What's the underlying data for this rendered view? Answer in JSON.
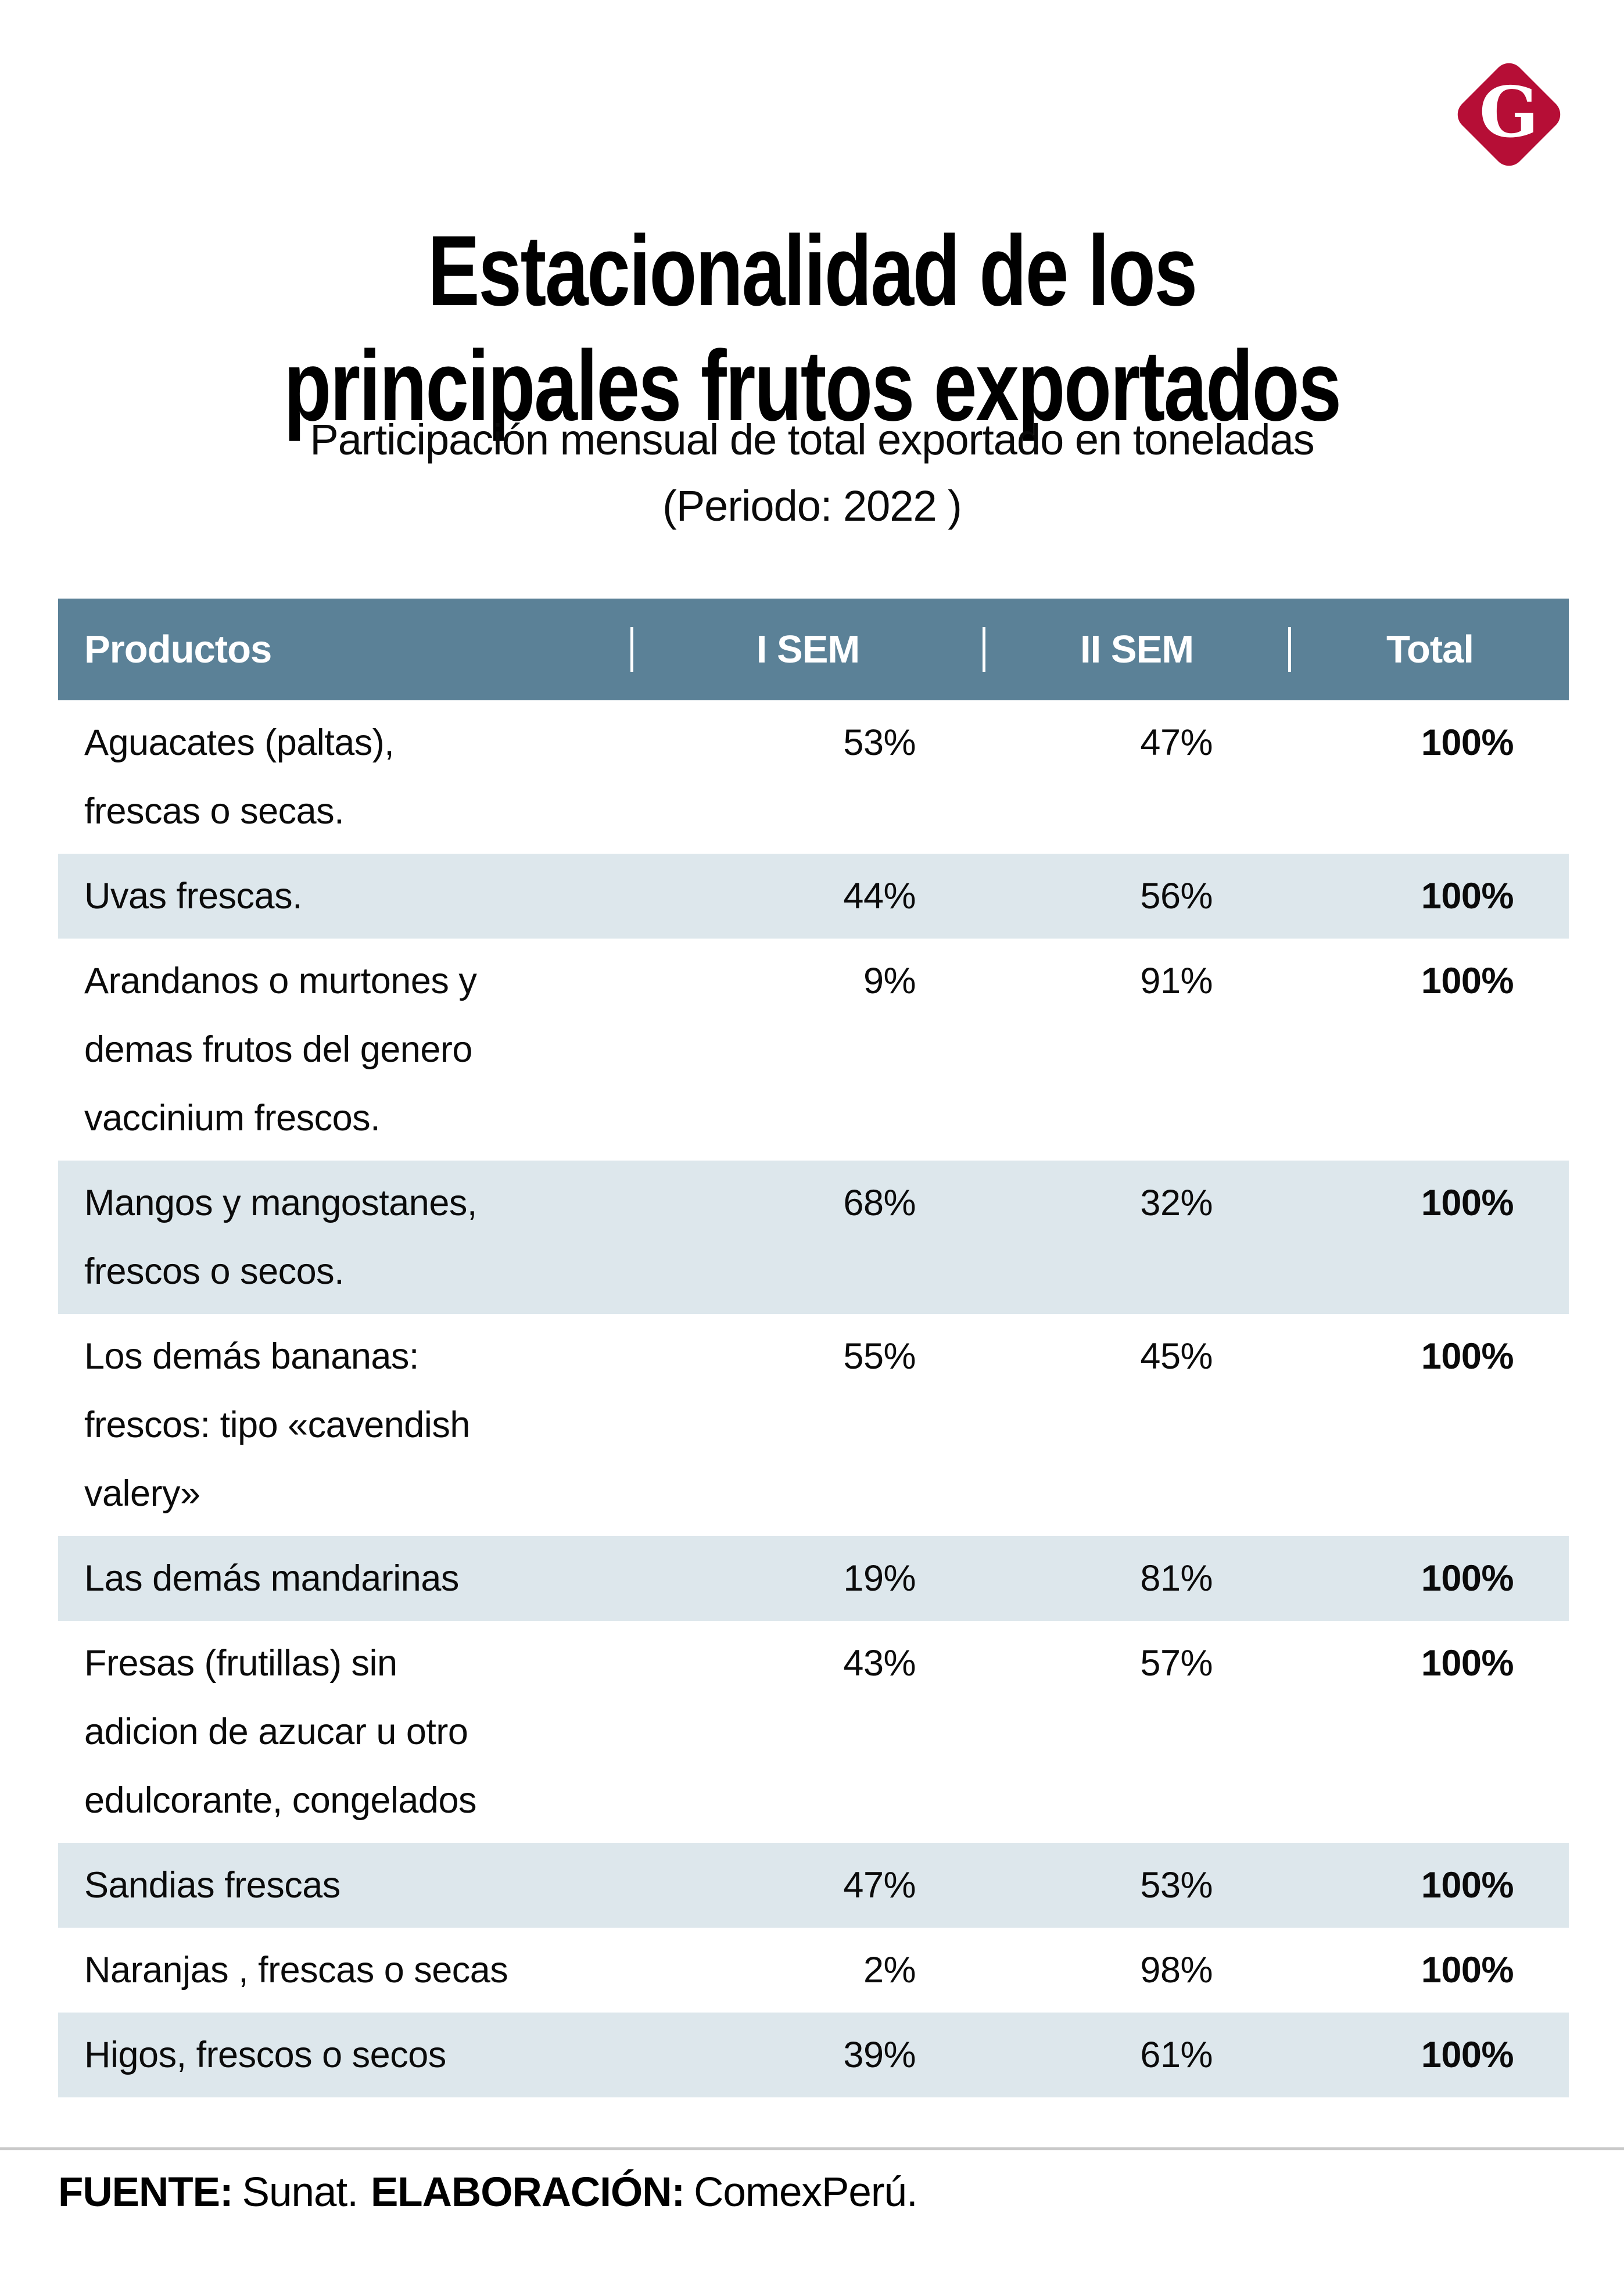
{
  "logo": {
    "letter": "G",
    "color": "#B60E36"
  },
  "title": {
    "line1": "Estacionalidad de los",
    "line2": "principales frutos exportados"
  },
  "subtitle": {
    "line1": "Participación mensual de total exportado en toneladas",
    "line2": "(Periodo: 2022 )"
  },
  "table": {
    "columns": [
      "Productos",
      "I SEM",
      "II SEM",
      "Total"
    ],
    "rows": [
      {
        "product": "Aguacates (paltas),\nfrescas o secas.",
        "i_sem": "53%",
        "ii_sem": "47%",
        "total": "100%",
        "shaded": false
      },
      {
        "product": "Uvas frescas.",
        "i_sem": "44%",
        "ii_sem": "56%",
        "total": "100%",
        "shaded": true
      },
      {
        "product": "Arandanos o murtones y\ndemas frutos del genero\nvaccinium frescos.",
        "i_sem": "9%",
        "ii_sem": "91%",
        "total": "100%",
        "shaded": false
      },
      {
        "product": "Mangos y mangostanes,\nfrescos o secos.",
        "i_sem": "68%",
        "ii_sem": "32%",
        "total": "100%",
        "shaded": true
      },
      {
        "product": "Los demás bananas:\nfrescos: tipo «cavendish\nvalery»",
        "i_sem": "55%",
        "ii_sem": "45%",
        "total": "100%",
        "shaded": false
      },
      {
        "product": "Las demás mandarinas",
        "i_sem": "19%",
        "ii_sem": "81%",
        "total": "100%",
        "shaded": true
      },
      {
        "product": "Fresas (frutillas) sin\nadicion de azucar u otro\nedulcorante, congelados",
        "i_sem": "43%",
        "ii_sem": "57%",
        "total": "100%",
        "shaded": false
      },
      {
        "product": "Sandias frescas",
        "i_sem": "47%",
        "ii_sem": "53%",
        "total": "100%",
        "shaded": true
      },
      {
        "product": "Naranjas , frescas o secas",
        "i_sem": "2%",
        "ii_sem": "98%",
        "total": "100%",
        "shaded": false
      },
      {
        "product": "Higos, frescos o secos",
        "i_sem": "39%",
        "ii_sem": "61%",
        "total": "100%",
        "shaded": true
      }
    ]
  },
  "footer": {
    "source_label": "FUENTE:",
    "source_value": "Sunat.",
    "elaboration_label": "ELABORACIÓN:",
    "elaboration_value": "ComexPerú."
  },
  "colors": {
    "header_bg": "#5B8197",
    "row_shaded_bg": "#DDE7EC",
    "logo_red": "#B60E36",
    "rule_gray": "#C9C9C9",
    "text": "#0b0b0b"
  },
  "chart_data": {
    "type": "table",
    "title": "Estacionalidad de los principales frutos exportados",
    "subtitle": "Participación mensual de total exportado en toneladas (Periodo: 2022 )",
    "columns": [
      "Productos",
      "I SEM",
      "II SEM",
      "Total"
    ],
    "categories": [
      "Aguacates (paltas), frescas o secas.",
      "Uvas frescas.",
      "Arandanos o murtones y demas frutos del genero vaccinium frescos.",
      "Mangos y mangostanes, frescos o secos.",
      "Los demás bananas: frescos: tipo «cavendish valery»",
      "Las demás mandarinas",
      "Fresas (frutillas) sin adicion de azucar u otro edulcorante, congelados",
      "Sandias frescas",
      "Naranjas , frescas o secas",
      "Higos, frescos o secos"
    ],
    "series": [
      {
        "name": "I SEM",
        "unit": "%",
        "values": [
          53,
          44,
          9,
          68,
          55,
          19,
          43,
          47,
          2,
          39
        ]
      },
      {
        "name": "II SEM",
        "unit": "%",
        "values": [
          47,
          56,
          91,
          32,
          45,
          81,
          57,
          53,
          98,
          61
        ]
      },
      {
        "name": "Total",
        "unit": "%",
        "values": [
          100,
          100,
          100,
          100,
          100,
          100,
          100,
          100,
          100,
          100
        ]
      }
    ],
    "source": "FUENTE: Sunat. ELABORACIÓN: ComexPerú."
  }
}
